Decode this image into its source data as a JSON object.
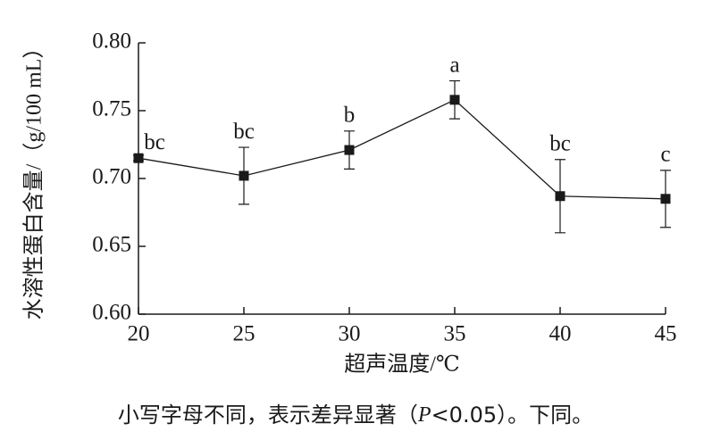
{
  "chart_data": {
    "type": "line",
    "x_label": "超声温度/℃",
    "y_label": "水溶性蛋白含量/（g/100 mL）",
    "x": [
      20,
      25,
      30,
      35,
      40,
      45
    ],
    "values": [
      0.715,
      0.702,
      0.721,
      0.758,
      0.687,
      0.685
    ],
    "errors": [
      0.002,
      0.021,
      0.014,
      0.014,
      0.027,
      0.021
    ],
    "value_labels": [
      "bc",
      "bc",
      "b",
      "a",
      "bc",
      "c"
    ],
    "color": "#1a1a1a",
    "xlim": [
      20,
      45
    ],
    "xticks": [
      20,
      25,
      30,
      35,
      40,
      45
    ],
    "ylim": [
      0.6,
      0.8
    ],
    "yticks": [
      {
        "value": 0.6,
        "label": "0.60"
      },
      0.65,
      {
        "value": 0.7,
        "label": "0.70"
      },
      0.75,
      {
        "value": 0.8,
        "label": "0.80"
      }
    ],
    "caption": [
      "小写字母不同，表示差异显著（",
      "P",
      "<0.05）。下同。"
    ]
  }
}
